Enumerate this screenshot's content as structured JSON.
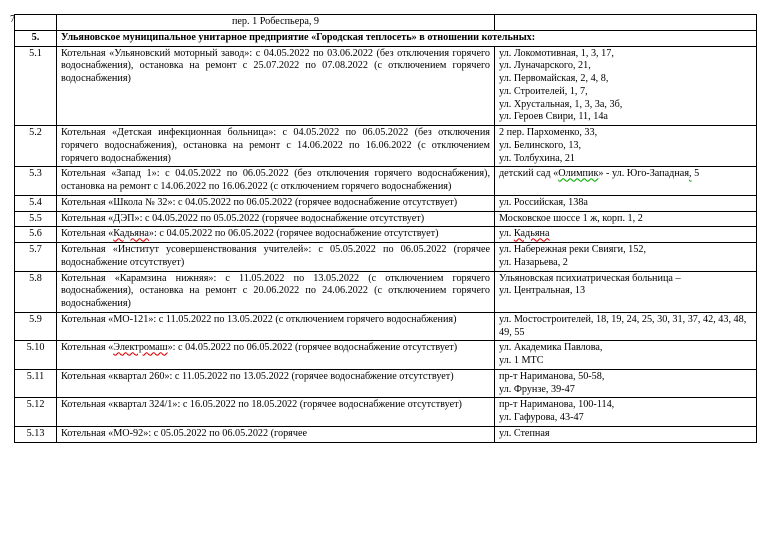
{
  "pagenum": "7",
  "pre_row": {
    "col2": "пер. 1 Робеспьера, 9"
  },
  "section": {
    "num": "5.",
    "title": "Ульяновское муниципальное унитарное предприятие «Городская теплосеть» в отношении  котельных:"
  },
  "rows": [
    {
      "num": "5.1",
      "desc": "Котельная «Ульяновский моторный завод»: с 04.05.2022 по 03.06.2022 (без отключения горячего водоснабжения), остановка на ремонт с 25.07.2022 по 07.08.2022 (с отключением горячего водоснабжения)",
      "addr_lines": [
        "ул. Локомотивная, 1, 3, 17,",
        "ул. Луначарского, 21,",
        "ул. Первомайская, 2, 4, 8,",
        "ул. Строителей, 1, 7,",
        "ул. Хрустальная, 1, 3, 3а, 3б,",
        "ул. Героев Свири, 11, 14а"
      ]
    },
    {
      "num": "5.2",
      "desc": "Котельная «Детская инфекционная больница»: с 04.05.2022 по 06.05.2022 (без отключения горячего водоснабжения), остановка на ремонт с   14.06.2022 по 16.06.2022 (с отключением горячего водоснабжения)",
      "addr_lines": [
        "2 пер. Пархоменко, 33,",
        "ул. Белинского, 13,",
        "ул. Толбухина, 21"
      ]
    },
    {
      "num": "5.3",
      "desc": "Котельная «Запад 1»: с 04.05.2022 по 06.05.2022 (без отключения горячего водоснабжения), остановка на ремонт с 14.06.2022 по 16.06.2022 (с отключением горячего водоснабжения)",
      "addr_html": "детский сад «<span class='greenwave'>Олимпик</span>» - ул. Юго-Западная<span class='greenwave'>,</span> 5"
    },
    {
      "num": "5.4",
      "desc": "Котельная «Школа № 32»: с 04.05.2022 по 06.05.2022 (горячее водоснабжение отсутствует)",
      "addr_lines": [
        "ул. Российская, 138а"
      ]
    },
    {
      "num": "5.5",
      "desc": "Котельная «ДЭП»: с 04.05.2022 по 05.05.2022 (горячее водоснабжение отсутствует)",
      "addr_lines": [
        "Московское шоссе 1 ж, корп. 1, 2"
      ]
    },
    {
      "num": "5.6",
      "desc_html": "Котельная «<span class='redwave'>Кадьяна</span>»: с 04.05.2022 по 06.05.2022 (горячее водоснабжение отсутствует)",
      "addr_html": "ул. <span class='redwave'>Кадьяна</span>"
    },
    {
      "num": "5.7",
      "desc": "Котельная «Институт усовершенствования учителей»: с 05.05.2022 по 06.05.2022 (горячее водоснабжение отсутствует)",
      "addr_lines": [
        "ул. Набережная реки Свияги, 152,",
        "ул. Назарьева, 2"
      ]
    },
    {
      "num": "5.8",
      "desc": "Котельная «Карамзина нижняя»: с 11.05.2022 по 13.05.2022 (с отключением   горячего водоснабжения), остановка на ремонт с 20.06.2022 по 24.06.2022 (с отключением горячего водоснабжения)",
      "addr_lines": [
        "Ульяновская    психиатрическая    больница    –",
        "ул. Центральная, 13"
      ],
      "addr_justify": true
    },
    {
      "num": "5.9",
      "desc": "Котельная «МО-121»: с 11.05.2022 по 13.05.2022 (с отключением горячего водоснабжения)",
      "addr_lines": [
        "ул. Мостостроителей, 18, 19, 24, 25, 30, 31, 37, 42, 43, 48, 49, 55"
      ]
    },
    {
      "num": "5.10",
      "desc_html": "Котельная «<span class='redwave'>Электромаш</span>»: с 04.05.2022 по 06.05.2022 (горячее водоснабжение отсутствует)",
      "addr_lines": [
        "ул. Академика Павлова,",
        "ул. 1 МТС"
      ]
    },
    {
      "num": "5.11",
      "desc": "Котельная «квартал 260»: с 11.05.2022 по 13.05.2022 (горячее водоснабжение отсутствует)",
      "addr_lines": [
        "пр-т Нариманова, 50-58,",
        "ул. Фрунзе, 39-47"
      ]
    },
    {
      "num": "5.12",
      "desc": "Котельная «квартал 324/1»: с 16.05.2022 по 18.05.2022 (горячее водоснабжение отсутствует)",
      "addr_lines": [
        "пр-т Нариманова, 100-114,",
        "ул. Гафурова, 43-47"
      ]
    },
    {
      "num": "5.13",
      "desc": "Котельная   «МО-92»:   с   05.05.2022   по   06.05.2022   (горячее",
      "addr_lines": [
        "ул. Степная"
      ]
    }
  ]
}
